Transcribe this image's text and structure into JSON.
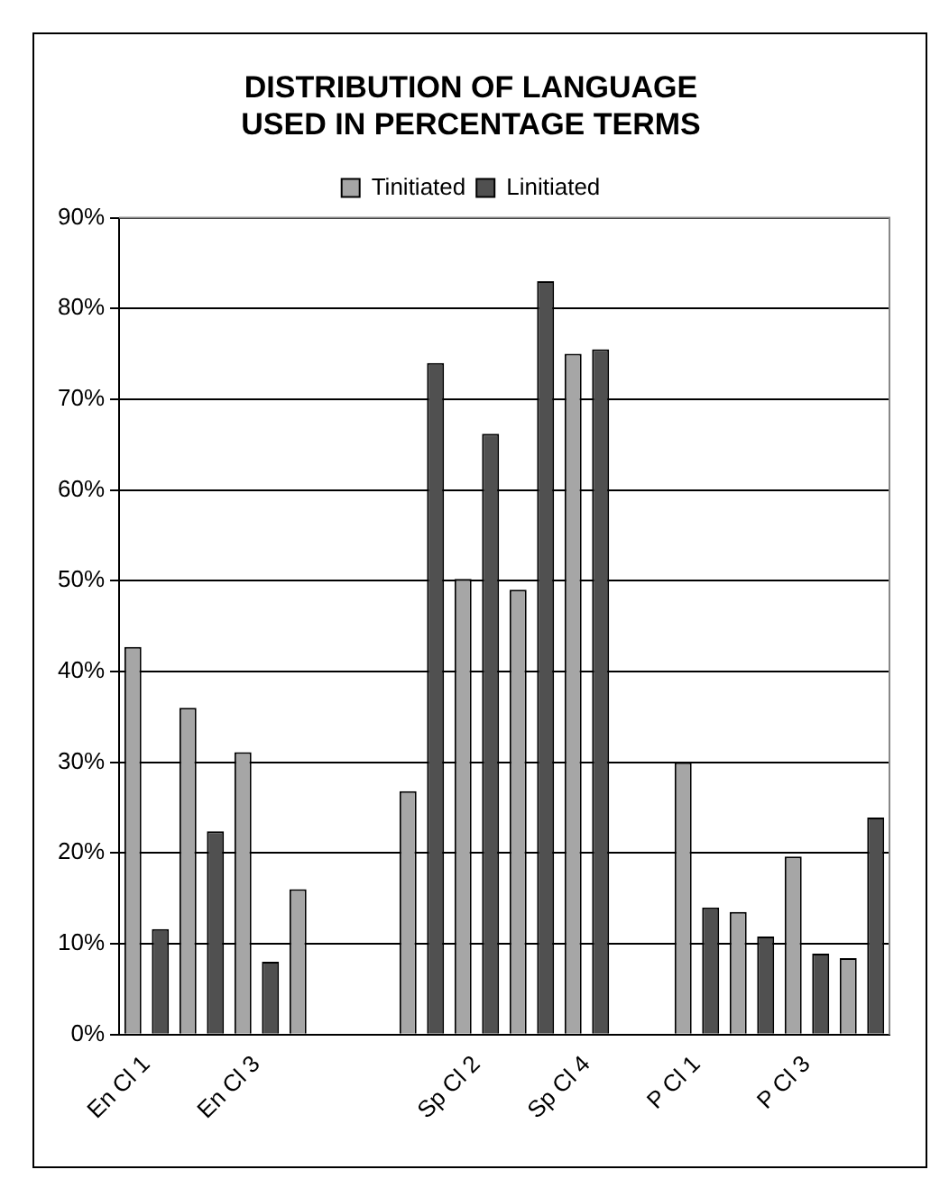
{
  "chart_data": {
    "type": "bar",
    "title": [
      "DISTRIBUTION OF LANGUAGE",
      "USED IN PERCENTAGE TERMS"
    ],
    "categories": [
      "En Cl 1",
      null,
      "En Cl 3",
      null,
      null,
      null,
      "Sp Cl 2",
      null,
      "Sp Cl 4",
      null,
      "P Cl 1",
      null,
      "P Cl 3",
      null
    ],
    "series": [
      {
        "name": "Tinitiated",
        "color": "#a6a6a6",
        "values": [
          42.7,
          36.0,
          31.1,
          16.0,
          null,
          26.8,
          50.2,
          49.0,
          75.0,
          null,
          30.0,
          13.5,
          19.6,
          8.4
        ]
      },
      {
        "name": "Linitiated",
        "color": "#505050",
        "values": [
          11.6,
          22.4,
          8.0,
          null,
          null,
          74.0,
          66.2,
          83.0,
          75.5,
          null,
          14.0,
          10.8,
          8.9,
          23.9
        ]
      }
    ],
    "ylim": [
      0,
      90
    ],
    "yticks": [
      {
        "value": 0,
        "label": "0%"
      },
      {
        "value": 10,
        "label": "10%"
      },
      {
        "value": 20,
        "label": "20%"
      },
      {
        "value": 30,
        "label": "30%"
      },
      {
        "value": 40,
        "label": "40%"
      },
      {
        "value": 50,
        "label": "50%"
      },
      {
        "value": 60,
        "label": "60%"
      },
      {
        "value": 70,
        "label": "70%"
      },
      {
        "value": 80,
        "label": "80%"
      },
      {
        "value": 90,
        "label": "90%"
      }
    ],
    "grid": "y",
    "legend": "top"
  }
}
